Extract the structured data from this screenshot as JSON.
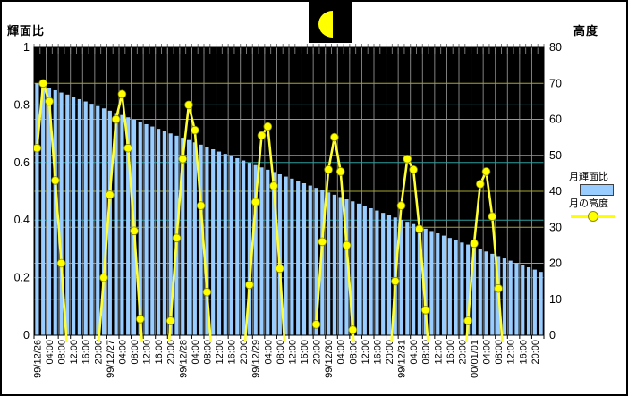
{
  "window": {
    "background": "#FFFFFF",
    "border_color": "#000000"
  },
  "header": {
    "moon_phase_icon": "last-quarter-moon",
    "icon_bg": "#000000",
    "icon_moon_color": "#FFFF00"
  },
  "left_axis": {
    "title": "輝面比",
    "min": 0,
    "max": 1,
    "tick_values": [
      1,
      0.8,
      0.6,
      0.4,
      0.2,
      0
    ],
    "tick_labels": [
      "1",
      "0.8",
      "0.6",
      "0.4",
      "0.2",
      "0"
    ],
    "gridline_values": [
      0.8,
      0.6,
      0.4,
      0.2
    ],
    "gridline_color": "#2E9E9E"
  },
  "right_axis": {
    "title": "高度",
    "min": 0,
    "max": 80,
    "tick_values": [
      80,
      70,
      60,
      50,
      40,
      30,
      20,
      10,
      0
    ],
    "tick_labels": [
      "80",
      "70",
      "60",
      "50",
      "40",
      "30",
      "20",
      "10",
      "0"
    ],
    "gridline_values": [
      70,
      60,
      50,
      40,
      30,
      20,
      10
    ],
    "gridline_color": "#A6A62E"
  },
  "legend": {
    "items": [
      {
        "label": "月輝面比",
        "swatch": "bar",
        "color": "#99CCFF"
      },
      {
        "label": "月の高度",
        "swatch": "line-marker",
        "color": "#FFFF00"
      }
    ]
  },
  "chart_data": {
    "type": "bar+line",
    "x_start": "99/12/26 00:00",
    "x_step_hours": 2,
    "x_tick_interval_hours": 4,
    "x_tick_labels": [
      "99/12/26",
      "04:00",
      "08:00",
      "12:00",
      "16:00",
      "20:00",
      "99/12/27",
      "04:00",
      "08:00",
      "12:00",
      "16:00",
      "20:00",
      "99/12/28",
      "04:00",
      "08:00",
      "12:00",
      "16:00",
      "20:00",
      "99/12/29",
      "04:00",
      "08:00",
      "12:00",
      "16:00",
      "20:00",
      "99/12/30",
      "04:00",
      "08:00",
      "12:00",
      "16:00",
      "20:00",
      "99/12/31",
      "04:00",
      "08:00",
      "12:00",
      "16:00",
      "20:00",
      "00/01/01",
      "04:00",
      "08:00",
      "12:00",
      "16:00",
      "20:00"
    ],
    "plot_background": "#000000",
    "vertical_gridline_color": "#8F8F8F",
    "left_ylim": [
      0,
      1
    ],
    "right_ylim": [
      0,
      80
    ],
    "legend_position": "right",
    "series": [
      {
        "name": "月輝面比",
        "type": "bar",
        "axis": "left",
        "color": "#99CCFF",
        "values": [
          0.875,
          0.867,
          0.859,
          0.851,
          0.843,
          0.836,
          0.828,
          0.82,
          0.812,
          0.804,
          0.796,
          0.788,
          0.78,
          0.772,
          0.765,
          0.757,
          0.749,
          0.741,
          0.733,
          0.725,
          0.717,
          0.709,
          0.701,
          0.693,
          0.686,
          0.678,
          0.67,
          0.662,
          0.654,
          0.646,
          0.638,
          0.63,
          0.622,
          0.615,
          0.607,
          0.599,
          0.591,
          0.583,
          0.575,
          0.567,
          0.559,
          0.551,
          0.544,
          0.536,
          0.528,
          0.52,
          0.512,
          0.504,
          0.496,
          0.488,
          0.48,
          0.472,
          0.465,
          0.457,
          0.449,
          0.441,
          0.433,
          0.425,
          0.417,
          0.409,
          0.401,
          0.394,
          0.386,
          0.378,
          0.37,
          0.362,
          0.354,
          0.346,
          0.338,
          0.33,
          0.322,
          0.315,
          0.307,
          0.299,
          0.291,
          0.283,
          0.275,
          0.267,
          0.259,
          0.251,
          0.244,
          0.236,
          0.228,
          0.22
        ]
      },
      {
        "name": "月の高度",
        "type": "line",
        "axis": "right",
        "line_color": "#FFFF33",
        "marker_color": "#FFFF00",
        "values": [
          52,
          70,
          65,
          43,
          20,
          -5,
          null,
          null,
          null,
          null,
          -5,
          16,
          39,
          60,
          67,
          52,
          29,
          4.5,
          -18,
          null,
          null,
          -20,
          4,
          27,
          49,
          64,
          57,
          36,
          12,
          -10,
          null,
          null,
          null,
          null,
          -8,
          14,
          37,
          55.5,
          58,
          41.5,
          18.5,
          -8,
          null,
          null,
          null,
          null,
          3,
          26,
          46,
          55,
          45.5,
          25,
          1.5,
          -20,
          null,
          null,
          null,
          null,
          -12,
          15,
          36,
          49,
          46,
          29.5,
          7,
          -15,
          null,
          null,
          null,
          null,
          -18,
          4,
          25.5,
          42,
          45.5,
          33,
          13,
          -10,
          null,
          null,
          null,
          null,
          null,
          null
        ]
      }
    ]
  }
}
